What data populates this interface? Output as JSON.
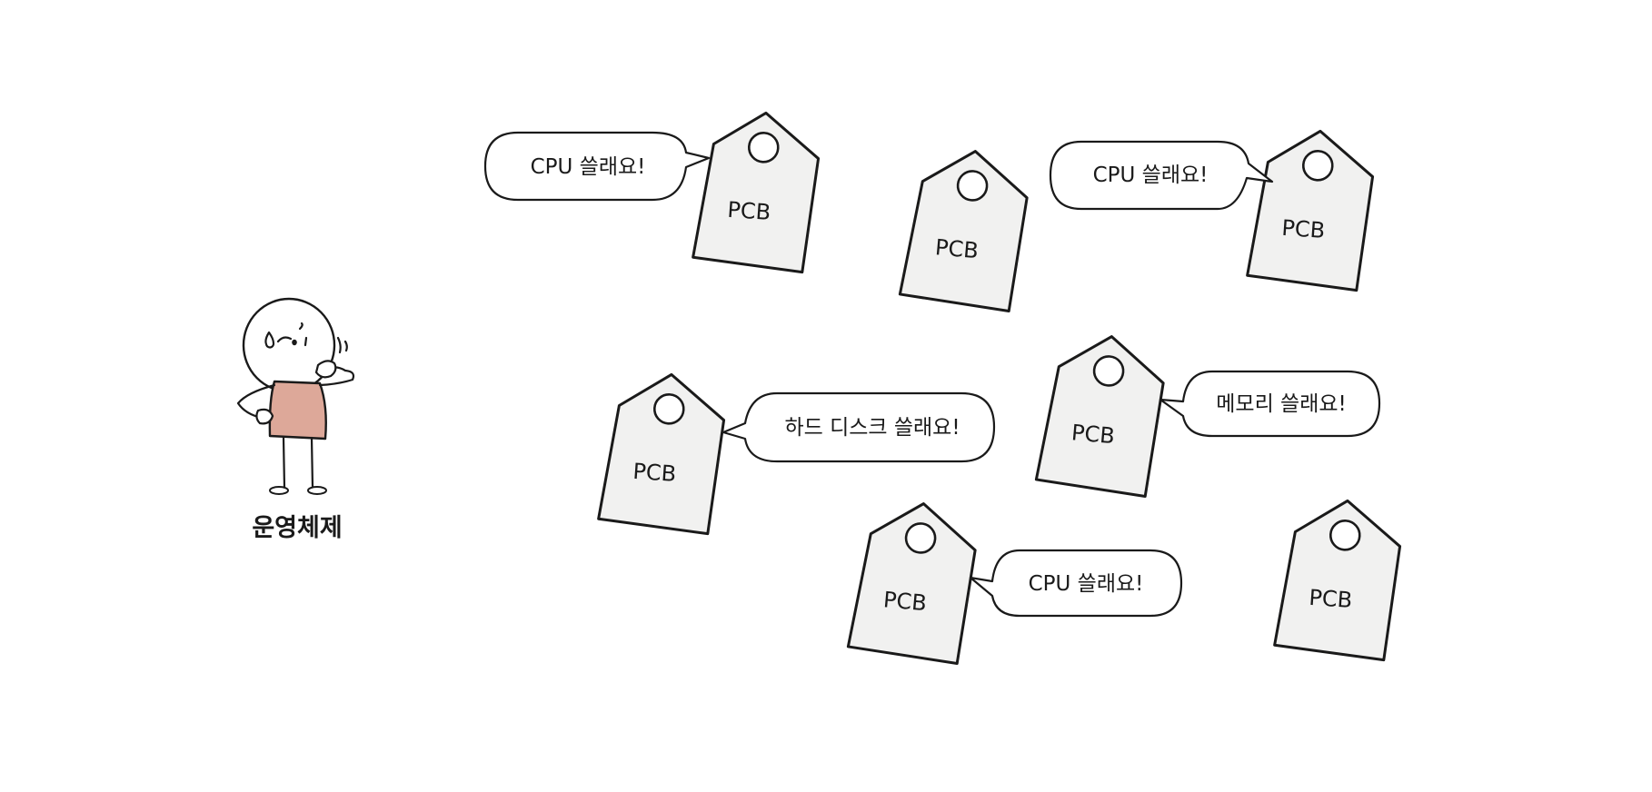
{
  "os": {
    "label": "운영체제"
  },
  "tags": [
    {
      "label": "PCB"
    },
    {
      "label": "PCB"
    },
    {
      "label": "PCB"
    },
    {
      "label": "PCB"
    },
    {
      "label": "PCB"
    },
    {
      "label": "PCB"
    },
    {
      "label": "PCB"
    }
  ],
  "bubbles": [
    {
      "text": "CPU 쓸래요!"
    },
    {
      "text": "CPU 쓸래요!"
    },
    {
      "text": "하드 디스크 쓸래요!"
    },
    {
      "text": "메모리 쓸래요!"
    },
    {
      "text": "CPU 쓸래요!"
    }
  ],
  "colors": {
    "tag_fill": "#f1f1f0",
    "shirt": "#dda899",
    "stroke": "#1a1a1a",
    "background": "#ffffff"
  }
}
